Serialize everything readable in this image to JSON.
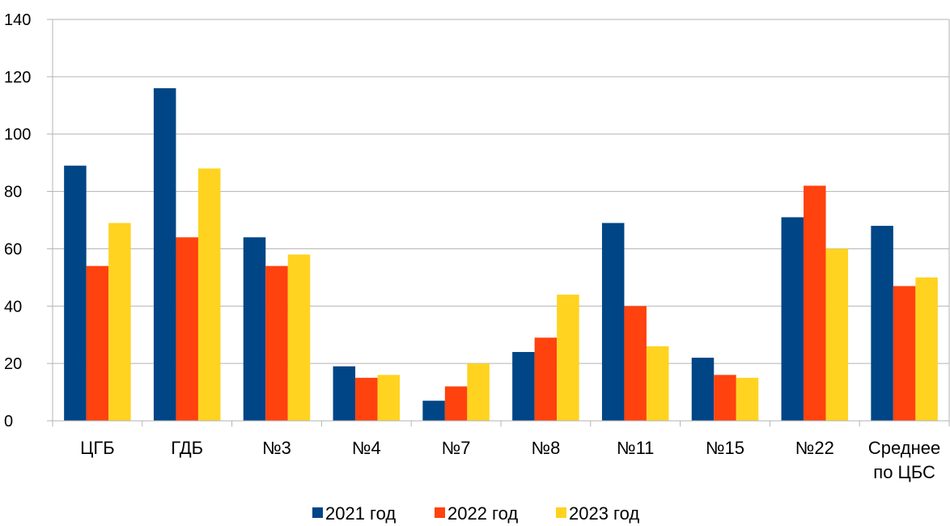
{
  "chart_data": {
    "type": "bar",
    "categories": [
      [
        "ЦГБ"
      ],
      [
        "ГДБ"
      ],
      [
        "№3"
      ],
      [
        "№4"
      ],
      [
        "№7"
      ],
      [
        "№8"
      ],
      [
        "№11"
      ],
      [
        "№15"
      ],
      [
        "№22"
      ],
      [
        "Среднее",
        "по ЦБС"
      ]
    ],
    "series": [
      {
        "name": "2021 год",
        "color": "#004586",
        "values": [
          89,
          116,
          64,
          19,
          7,
          24,
          69,
          22,
          71,
          68
        ]
      },
      {
        "name": "2022 год",
        "color": "#FF420E",
        "values": [
          54,
          64,
          54,
          15,
          12,
          29,
          40,
          16,
          82,
          47
        ]
      },
      {
        "name": "2023 год",
        "color": "#FFD320",
        "values": [
          69,
          88,
          58,
          16,
          20,
          44,
          26,
          15,
          60,
          50
        ]
      }
    ],
    "ylim": [
      0,
      140
    ],
    "yticks": [
      0,
      20,
      40,
      60,
      80,
      100,
      120,
      140
    ],
    "grid": true,
    "legend_position": "bottom-center",
    "title": "",
    "xlabel": "",
    "ylabel": ""
  }
}
